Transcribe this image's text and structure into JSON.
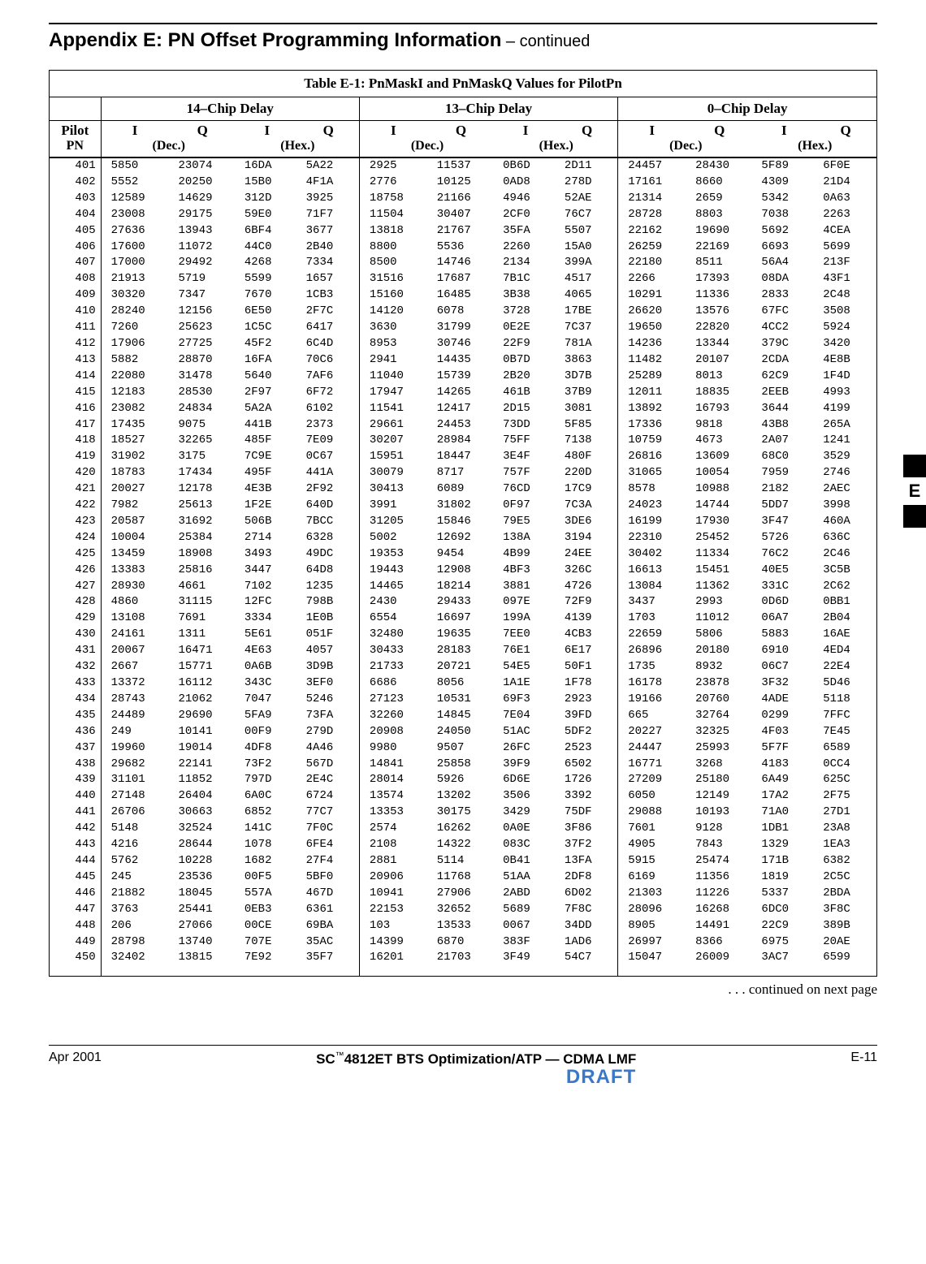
{
  "header": {
    "title_main": "Appendix E: PN Offset Programming Information",
    "title_cont": " – continued"
  },
  "table": {
    "caption_bold": "Table E-1:",
    "caption_rest": " PnMaskI and PnMaskQ Values for PilotPn",
    "groups": [
      "14–Chip Delay",
      "13–Chip Delay",
      "0–Chip Delay"
    ],
    "iq_labels": {
      "I": "I",
      "Q": "Q"
    },
    "sub_labels": {
      "dec": "(Dec.)",
      "hex": "(Hex.)"
    },
    "pilot_label_top": "Pilot",
    "pilot_label_bot": "PN",
    "rows": [
      {
        "pn": "401",
        "a": [
          "5850",
          "23074",
          "16DA",
          "5A22"
        ],
        "b": [
          "2925",
          "11537",
          "0B6D",
          "2D11"
        ],
        "c": [
          "24457",
          "28430",
          "5F89",
          "6F0E"
        ]
      },
      {
        "pn": "402",
        "a": [
          "5552",
          "20250",
          "15B0",
          "4F1A"
        ],
        "b": [
          "2776",
          "10125",
          "0AD8",
          "278D"
        ],
        "c": [
          "17161",
          "8660",
          "4309",
          "21D4"
        ]
      },
      {
        "pn": "403",
        "a": [
          "12589",
          "14629",
          "312D",
          "3925"
        ],
        "b": [
          "18758",
          "21166",
          "4946",
          "52AE"
        ],
        "c": [
          "21314",
          "2659",
          "5342",
          "0A63"
        ]
      },
      {
        "pn": "404",
        "a": [
          "23008",
          "29175",
          "59E0",
          "71F7"
        ],
        "b": [
          "11504",
          "30407",
          "2CF0",
          "76C7"
        ],
        "c": [
          "28728",
          "8803",
          "7038",
          "2263"
        ]
      },
      {
        "pn": "405",
        "a": [
          "27636",
          "13943",
          "6BF4",
          "3677"
        ],
        "b": [
          "13818",
          "21767",
          "35FA",
          "5507"
        ],
        "c": [
          "22162",
          "19690",
          "5692",
          "4CEA"
        ]
      },
      {
        "pn": "406",
        "a": [
          "17600",
          "11072",
          "44C0",
          "2B40"
        ],
        "b": [
          "8800",
          "5536",
          "2260",
          "15A0"
        ],
        "c": [
          "26259",
          "22169",
          "6693",
          "5699"
        ]
      },
      {
        "pn": "407",
        "a": [
          "17000",
          "29492",
          "4268",
          "7334"
        ],
        "b": [
          "8500",
          "14746",
          "2134",
          "399A"
        ],
        "c": [
          "22180",
          "8511",
          "56A4",
          "213F"
        ]
      },
      {
        "pn": "408",
        "a": [
          "21913",
          "5719",
          "5599",
          "1657"
        ],
        "b": [
          "31516",
          "17687",
          "7B1C",
          "4517"
        ],
        "c": [
          "2266",
          "17393",
          "08DA",
          "43F1"
        ]
      },
      {
        "pn": "409",
        "a": [
          "30320",
          "7347",
          "7670",
          "1CB3"
        ],
        "b": [
          "15160",
          "16485",
          "3B38",
          "4065"
        ],
        "c": [
          "10291",
          "11336",
          "2833",
          "2C48"
        ]
      },
      {
        "pn": "410",
        "a": [
          "28240",
          "12156",
          "6E50",
          "2F7C"
        ],
        "b": [
          "14120",
          "6078",
          "3728",
          "17BE"
        ],
        "c": [
          "26620",
          "13576",
          "67FC",
          "3508"
        ]
      },
      {
        "pn": "411",
        "a": [
          "7260",
          "25623",
          "1C5C",
          "6417"
        ],
        "b": [
          "3630",
          "31799",
          "0E2E",
          "7C37"
        ],
        "c": [
          "19650",
          "22820",
          "4CC2",
          "5924"
        ]
      },
      {
        "pn": "412",
        "a": [
          "17906",
          "27725",
          "45F2",
          "6C4D"
        ],
        "b": [
          "8953",
          "30746",
          "22F9",
          "781A"
        ],
        "c": [
          "14236",
          "13344",
          "379C",
          "3420"
        ]
      },
      {
        "pn": "413",
        "a": [
          "5882",
          "28870",
          "16FA",
          "70C6"
        ],
        "b": [
          "2941",
          "14435",
          "0B7D",
          "3863"
        ],
        "c": [
          "11482",
          "20107",
          "2CDA",
          "4E8B"
        ]
      },
      {
        "pn": "414",
        "a": [
          "22080",
          "31478",
          "5640",
          "7AF6"
        ],
        "b": [
          "11040",
          "15739",
          "2B20",
          "3D7B"
        ],
        "c": [
          "25289",
          "8013",
          "62C9",
          "1F4D"
        ]
      },
      {
        "pn": "415",
        "a": [
          "12183",
          "28530",
          "2F97",
          "6F72"
        ],
        "b": [
          "17947",
          "14265",
          "461B",
          "37B9"
        ],
        "c": [
          "12011",
          "18835",
          "2EEB",
          "4993"
        ]
      },
      {
        "pn": "416",
        "a": [
          "23082",
          "24834",
          "5A2A",
          "6102"
        ],
        "b": [
          "11541",
          "12417",
          "2D15",
          "3081"
        ],
        "c": [
          "13892",
          "16793",
          "3644",
          "4199"
        ]
      },
      {
        "pn": "417",
        "a": [
          "17435",
          "9075",
          "441B",
          "2373"
        ],
        "b": [
          "29661",
          "24453",
          "73DD",
          "5F85"
        ],
        "c": [
          "17336",
          "9818",
          "43B8",
          "265A"
        ]
      },
      {
        "pn": "418",
        "a": [
          "18527",
          "32265",
          "485F",
          "7E09"
        ],
        "b": [
          "30207",
          "28984",
          "75FF",
          "7138"
        ],
        "c": [
          "10759",
          "4673",
          "2A07",
          "1241"
        ]
      },
      {
        "pn": "419",
        "a": [
          "31902",
          "3175",
          "7C9E",
          "0C67"
        ],
        "b": [
          "15951",
          "18447",
          "3E4F",
          "480F"
        ],
        "c": [
          "26816",
          "13609",
          "68C0",
          "3529"
        ]
      },
      {
        "pn": "420",
        "a": [
          "18783",
          "17434",
          "495F",
          "441A"
        ],
        "b": [
          "30079",
          "8717",
          "757F",
          "220D"
        ],
        "c": [
          "31065",
          "10054",
          "7959",
          "2746"
        ]
      },
      {
        "pn": "421",
        "a": [
          "20027",
          "12178",
          "4E3B",
          "2F92"
        ],
        "b": [
          "30413",
          "6089",
          "76CD",
          "17C9"
        ],
        "c": [
          "8578",
          "10988",
          "2182",
          "2AEC"
        ]
      },
      {
        "pn": "422",
        "a": [
          "7982",
          "25613",
          "1F2E",
          "640D"
        ],
        "b": [
          "3991",
          "31802",
          "0F97",
          "7C3A"
        ],
        "c": [
          "24023",
          "14744",
          "5DD7",
          "3998"
        ]
      },
      {
        "pn": "423",
        "a": [
          "20587",
          "31692",
          "506B",
          "7BCC"
        ],
        "b": [
          "31205",
          "15846",
          "79E5",
          "3DE6"
        ],
        "c": [
          "16199",
          "17930",
          "3F47",
          "460A"
        ]
      },
      {
        "pn": "424",
        "a": [
          "10004",
          "25384",
          "2714",
          "6328"
        ],
        "b": [
          "5002",
          "12692",
          "138A",
          "3194"
        ],
        "c": [
          "22310",
          "25452",
          "5726",
          "636C"
        ]
      },
      {
        "pn": "425",
        "a": [
          "13459",
          "18908",
          "3493",
          "49DC"
        ],
        "b": [
          "19353",
          "9454",
          "4B99",
          "24EE"
        ],
        "c": [
          "30402",
          "11334",
          "76C2",
          "2C46"
        ]
      },
      {
        "pn": "426",
        "a": [
          "13383",
          "25816",
          "3447",
          "64D8"
        ],
        "b": [
          "19443",
          "12908",
          "4BF3",
          "326C"
        ],
        "c": [
          "16613",
          "15451",
          "40E5",
          "3C5B"
        ]
      },
      {
        "pn": "427",
        "a": [
          "28930",
          "4661",
          "7102",
          "1235"
        ],
        "b": [
          "14465",
          "18214",
          "3881",
          "4726"
        ],
        "c": [
          "13084",
          "11362",
          "331C",
          "2C62"
        ]
      },
      {
        "pn": "428",
        "a": [
          "4860",
          "31115",
          "12FC",
          "798B"
        ],
        "b": [
          "2430",
          "29433",
          "097E",
          "72F9"
        ],
        "c": [
          "3437",
          "2993",
          "0D6D",
          "0BB1"
        ]
      },
      {
        "pn": "429",
        "a": [
          "13108",
          "7691",
          "3334",
          "1E0B"
        ],
        "b": [
          "6554",
          "16697",
          "199A",
          "4139"
        ],
        "c": [
          "1703",
          "11012",
          "06A7",
          "2B04"
        ]
      },
      {
        "pn": "430",
        "a": [
          "24161",
          "1311",
          "5E61",
          "051F"
        ],
        "b": [
          "32480",
          "19635",
          "7EE0",
          "4CB3"
        ],
        "c": [
          "22659",
          "5806",
          "5883",
          "16AE"
        ]
      },
      {
        "pn": "431",
        "a": [
          "20067",
          "16471",
          "4E63",
          "4057"
        ],
        "b": [
          "30433",
          "28183",
          "76E1",
          "6E17"
        ],
        "c": [
          "26896",
          "20180",
          "6910",
          "4ED4"
        ]
      },
      {
        "pn": "432",
        "a": [
          "2667",
          "15771",
          "0A6B",
          "3D9B"
        ],
        "b": [
          "21733",
          "20721",
          "54E5",
          "50F1"
        ],
        "c": [
          "1735",
          "8932",
          "06C7",
          "22E4"
        ]
      },
      {
        "pn": "433",
        "a": [
          "13372",
          "16112",
          "343C",
          "3EF0"
        ],
        "b": [
          "6686",
          "8056",
          "1A1E",
          "1F78"
        ],
        "c": [
          "16178",
          "23878",
          "3F32",
          "5D46"
        ]
      },
      {
        "pn": "434",
        "a": [
          "28743",
          "21062",
          "7047",
          "5246"
        ],
        "b": [
          "27123",
          "10531",
          "69F3",
          "2923"
        ],
        "c": [
          "19166",
          "20760",
          "4ADE",
          "5118"
        ]
      },
      {
        "pn": "435",
        "a": [
          "24489",
          "29690",
          "5FA9",
          "73FA"
        ],
        "b": [
          "32260",
          "14845",
          "7E04",
          "39FD"
        ],
        "c": [
          "665",
          "32764",
          "0299",
          "7FFC"
        ]
      },
      {
        "pn": "436",
        "a": [
          "249",
          "10141",
          "00F9",
          "279D"
        ],
        "b": [
          "20908",
          "24050",
          "51AC",
          "5DF2"
        ],
        "c": [
          "20227",
          "32325",
          "4F03",
          "7E45"
        ]
      },
      {
        "pn": "437",
        "a": [
          "19960",
          "19014",
          "4DF8",
          "4A46"
        ],
        "b": [
          "9980",
          "9507",
          "26FC",
          "2523"
        ],
        "c": [
          "24447",
          "25993",
          "5F7F",
          "6589"
        ]
      },
      {
        "pn": "438",
        "a": [
          "29682",
          "22141",
          "73F2",
          "567D"
        ],
        "b": [
          "14841",
          "25858",
          "39F9",
          "6502"
        ],
        "c": [
          "16771",
          "3268",
          "4183",
          "0CC4"
        ]
      },
      {
        "pn": "439",
        "a": [
          "31101",
          "11852",
          "797D",
          "2E4C"
        ],
        "b": [
          "28014",
          "5926",
          "6D6E",
          "1726"
        ],
        "c": [
          "27209",
          "25180",
          "6A49",
          "625C"
        ]
      },
      {
        "pn": "440",
        "a": [
          "27148",
          "26404",
          "6A0C",
          "6724"
        ],
        "b": [
          "13574",
          "13202",
          "3506",
          "3392"
        ],
        "c": [
          "6050",
          "12149",
          "17A2",
          "2F75"
        ]
      },
      {
        "pn": "441",
        "a": [
          "26706",
          "30663",
          "6852",
          "77C7"
        ],
        "b": [
          "13353",
          "30175",
          "3429",
          "75DF"
        ],
        "c": [
          "29088",
          "10193",
          "71A0",
          "27D1"
        ]
      },
      {
        "pn": "442",
        "a": [
          "5148",
          "32524",
          "141C",
          "7F0C"
        ],
        "b": [
          "2574",
          "16262",
          "0A0E",
          "3F86"
        ],
        "c": [
          "7601",
          "9128",
          "1DB1",
          "23A8"
        ]
      },
      {
        "pn": "443",
        "a": [
          "4216",
          "28644",
          "1078",
          "6FE4"
        ],
        "b": [
          "2108",
          "14322",
          "083C",
          "37F2"
        ],
        "c": [
          "4905",
          "7843",
          "1329",
          "1EA3"
        ]
      },
      {
        "pn": "444",
        "a": [
          "5762",
          "10228",
          "1682",
          "27F4"
        ],
        "b": [
          "2881",
          "5114",
          "0B41",
          "13FA"
        ],
        "c": [
          "5915",
          "25474",
          "171B",
          "6382"
        ]
      },
      {
        "pn": "445",
        "a": [
          "245",
          "23536",
          "00F5",
          "5BF0"
        ],
        "b": [
          "20906",
          "11768",
          "51AA",
          "2DF8"
        ],
        "c": [
          "6169",
          "11356",
          "1819",
          "2C5C"
        ]
      },
      {
        "pn": "446",
        "a": [
          "21882",
          "18045",
          "557A",
          "467D"
        ],
        "b": [
          "10941",
          "27906",
          "2ABD",
          "6D02"
        ],
        "c": [
          "21303",
          "11226",
          "5337",
          "2BDA"
        ]
      },
      {
        "pn": "447",
        "a": [
          "3763",
          "25441",
          "0EB3",
          "6361"
        ],
        "b": [
          "22153",
          "32652",
          "5689",
          "7F8C"
        ],
        "c": [
          "28096",
          "16268",
          "6DC0",
          "3F8C"
        ]
      },
      {
        "pn": "448",
        "a": [
          "206",
          "27066",
          "00CE",
          "69BA"
        ],
        "b": [
          "103",
          "13533",
          "0067",
          "34DD"
        ],
        "c": [
          "8905",
          "14491",
          "22C9",
          "389B"
        ]
      },
      {
        "pn": "449",
        "a": [
          "28798",
          "13740",
          "707E",
          "35AC"
        ],
        "b": [
          "14399",
          "6870",
          "383F",
          "1AD6"
        ],
        "c": [
          "26997",
          "8366",
          "6975",
          "20AE"
        ]
      },
      {
        "pn": "450",
        "a": [
          "32402",
          "13815",
          "7E92",
          "35F7"
        ],
        "b": [
          "16201",
          "21703",
          "3F49",
          "54C7"
        ],
        "c": [
          "15047",
          "26009",
          "3AC7",
          "6599"
        ]
      }
    ]
  },
  "continued": ". . . continued on next page",
  "side_tab": "E",
  "footer": {
    "left": "Apr 2001",
    "center_pre": "SC",
    "center_tm": "™",
    "center_post": "4812ET BTS Optimization/ATP — CDMA LMF",
    "right": "E-11",
    "draft": "DRAFT"
  },
  "colors": {
    "text": "#000000",
    "bg": "#ffffff",
    "draft": "#3a78c9"
  }
}
